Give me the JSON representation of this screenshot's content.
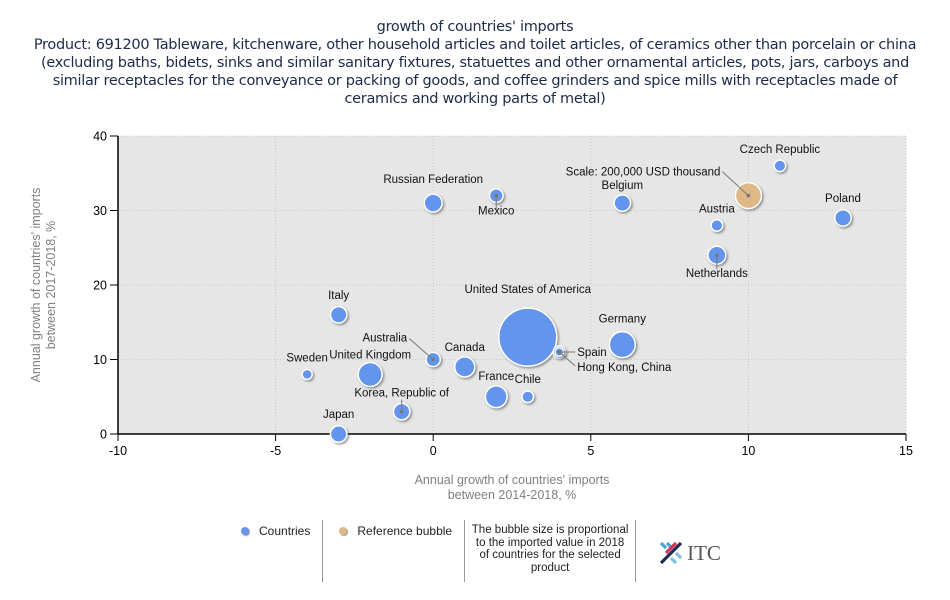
{
  "title": {
    "main": "growth of countries' imports",
    "subtitle": "Product: 691200 Tableware, kitchenware, other household articles and toilet articles, of ceramics other than porcelain or china (excluding baths, bidets, sinks and similar sanitary fixtures, statuettes and other ornamental articles, pots, jars, carboys and similar receptacles for the conveyance or packing of goods, and coffee grinders and spice mills with receptacles made of ceramics and working parts of metal)"
  },
  "chart_data": {
    "type": "scatter",
    "subtype": "bubble",
    "title": "growth of countries' imports",
    "xlabel": "Annual growth of countries' imports between 2014-2018, %",
    "ylabel": "Annual growth of countries' imports between 2017-2018, %",
    "xlim": [
      -10,
      15
    ],
    "ylim": [
      0,
      40
    ],
    "xticks": [
      -10,
      -5,
      0,
      5,
      10,
      15
    ],
    "yticks": [
      0,
      10,
      20,
      30,
      40
    ],
    "grid": true,
    "colors": {
      "countries": "#6495ED",
      "reference": "#DEB887",
      "plot_bg": "#E6E6E6"
    },
    "series": [
      {
        "name": "Countries",
        "points": [
          {
            "label": "United States of America",
            "x": 3,
            "y": 13,
            "size": 1000
          },
          {
            "label": "Germany",
            "x": 6,
            "y": 12,
            "size": 200
          },
          {
            "label": "United Kingdom",
            "x": -2,
            "y": 8,
            "size": 170
          },
          {
            "label": "France",
            "x": 2,
            "y": 5,
            "size": 140
          },
          {
            "label": "Canada",
            "x": 1,
            "y": 9,
            "size": 120
          },
          {
            "label": "Russian Federation",
            "x": 0,
            "y": 31,
            "size": 95
          },
          {
            "label": "Netherlands",
            "x": 9,
            "y": 24,
            "size": 95
          },
          {
            "label": "Italy",
            "x": -3,
            "y": 16,
            "size": 80
          },
          {
            "label": "Japan",
            "x": -3,
            "y": 0,
            "size": 80
          },
          {
            "label": "Korea, Republic of",
            "x": -1,
            "y": 3,
            "size": 80
          },
          {
            "label": "Belgium",
            "x": 6,
            "y": 31,
            "size": 80
          },
          {
            "label": "Poland",
            "x": 13,
            "y": 29,
            "size": 80
          },
          {
            "label": "Australia",
            "x": 0,
            "y": 10,
            "size": 60
          },
          {
            "label": "Mexico",
            "x": 2,
            "y": 32,
            "size": 55
          },
          {
            "label": "Spain",
            "x": 4,
            "y": 11,
            "size": 45
          },
          {
            "label": "Chile",
            "x": 3,
            "y": 5,
            "size": 40
          },
          {
            "label": "Austria",
            "x": 9,
            "y": 28,
            "size": 40
          },
          {
            "label": "Czech Republic",
            "x": 11,
            "y": 36,
            "size": 40
          },
          {
            "label": "Sweden",
            "x": -4,
            "y": 8,
            "size": 30
          },
          {
            "label": "Hong Kong, China",
            "x": 4,
            "y": 11,
            "size": 22
          }
        ]
      },
      {
        "name": "Reference bubble",
        "points": [
          {
            "label": "Scale: 200,000 USD thousand",
            "x": 10,
            "y": 32,
            "size": 200
          }
        ]
      }
    ]
  },
  "legend": {
    "countries": "Countries",
    "reference": "Reference bubble",
    "note": "The bubble size is proportional to the imported value in 2018 of countries for the selected product",
    "logo": "ITC"
  }
}
